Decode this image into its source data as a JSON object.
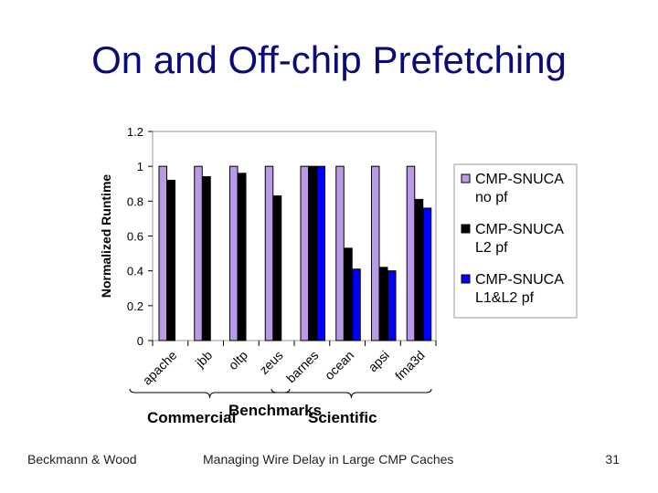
{
  "slide": {
    "title": "On and Off-chip Prefetching",
    "footer_left": "Beckmann & Wood",
    "footer_center": "Managing Wire Delay in Large CMP Caches",
    "page_number": "31"
  },
  "chart_data": {
    "type": "bar",
    "categories": [
      "apache",
      "jbb",
      "oltp",
      "zeus",
      "barnes",
      "ocean",
      "apsi",
      "fma3d"
    ],
    "series": [
      {
        "name": "CMP-SNUCA no pf",
        "values": [
          1.0,
          1.0,
          1.0,
          1.0,
          1.0,
          1.0,
          1.0,
          1.0
        ],
        "color": "#b89ae6"
      },
      {
        "name": "CMP-SNUCA L2 pf",
        "values": [
          0.92,
          0.94,
          0.96,
          0.83,
          1.0,
          0.53,
          0.42,
          0.81
        ],
        "color": "#000000"
      },
      {
        "name": "CMP-SNUCA L1&L2 pf",
        "values": [
          null,
          null,
          null,
          null,
          1.0,
          0.41,
          0.4,
          0.76
        ],
        "color": "#0000ff"
      }
    ],
    "ylabel": "Normalized Runtime",
    "xlabel": "Benchmarks",
    "yticks": [
      "0",
      "0.2",
      "0.4",
      "0.6",
      "0.8",
      "1",
      "1.2"
    ],
    "ylim": [
      0,
      1.2
    ],
    "groups": [
      {
        "label": "Commercial",
        "from": 0,
        "to": 3
      },
      {
        "label": "Scientific",
        "from": 4,
        "to": 7
      }
    ],
    "legend": {
      "position": "right",
      "entries": [
        [
          "CMP-SNUCA",
          "no pf"
        ],
        [
          "CMP-SNUCA",
          "L2 pf"
        ],
        [
          "CMP-SNUCA",
          "L1&L2 pf"
        ]
      ]
    },
    "grid": false
  }
}
